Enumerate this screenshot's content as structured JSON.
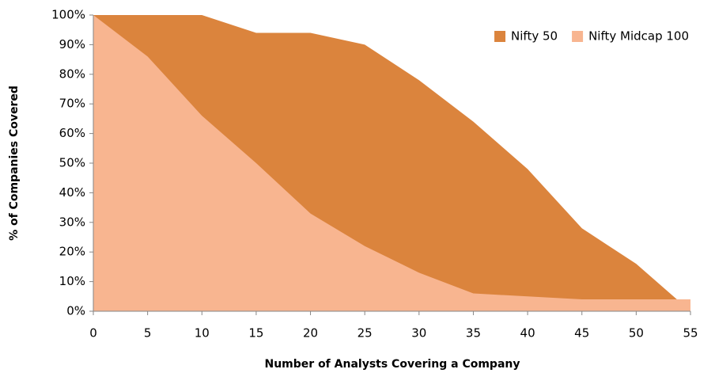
{
  "chart_data": {
    "type": "area",
    "x": [
      0,
      5,
      10,
      15,
      20,
      25,
      30,
      35,
      40,
      45,
      50,
      55
    ],
    "series": [
      {
        "name": "Nifty 50",
        "color": "#db843d",
        "values": [
          100,
          100,
          100,
          94,
          94,
          90,
          78,
          64,
          48,
          28,
          16,
          0
        ]
      },
      {
        "name": "Nifty Midcap 100",
        "color": "#f8b590",
        "values": [
          100,
          86,
          66,
          50,
          33,
          22,
          13,
          6,
          5,
          4,
          4,
          4
        ]
      }
    ],
    "xlabel": "Number of Analysts Covering a Company",
    "ylabel": "% of Companies Covered",
    "xlim": [
      0,
      55
    ],
    "xticks": [
      0,
      5,
      10,
      15,
      20,
      25,
      30,
      35,
      40,
      45,
      50,
      55
    ],
    "ylim": [
      0,
      100
    ],
    "yticks": [
      {
        "value": 0,
        "label": "0%"
      },
      {
        "value": 10,
        "label": "10%"
      },
      {
        "value": 20,
        "label": "20%"
      },
      {
        "value": 30,
        "label": "30%"
      },
      {
        "value": 40,
        "label": "40%"
      },
      {
        "value": 50,
        "label": "50%"
      },
      {
        "value": 60,
        "label": "60%"
      },
      {
        "value": 70,
        "label": "70%"
      },
      {
        "value": 80,
        "label": "80%"
      },
      {
        "value": 90,
        "label": "90%"
      },
      {
        "value": 100,
        "label": "100%"
      }
    ],
    "legend": "top-right"
  }
}
